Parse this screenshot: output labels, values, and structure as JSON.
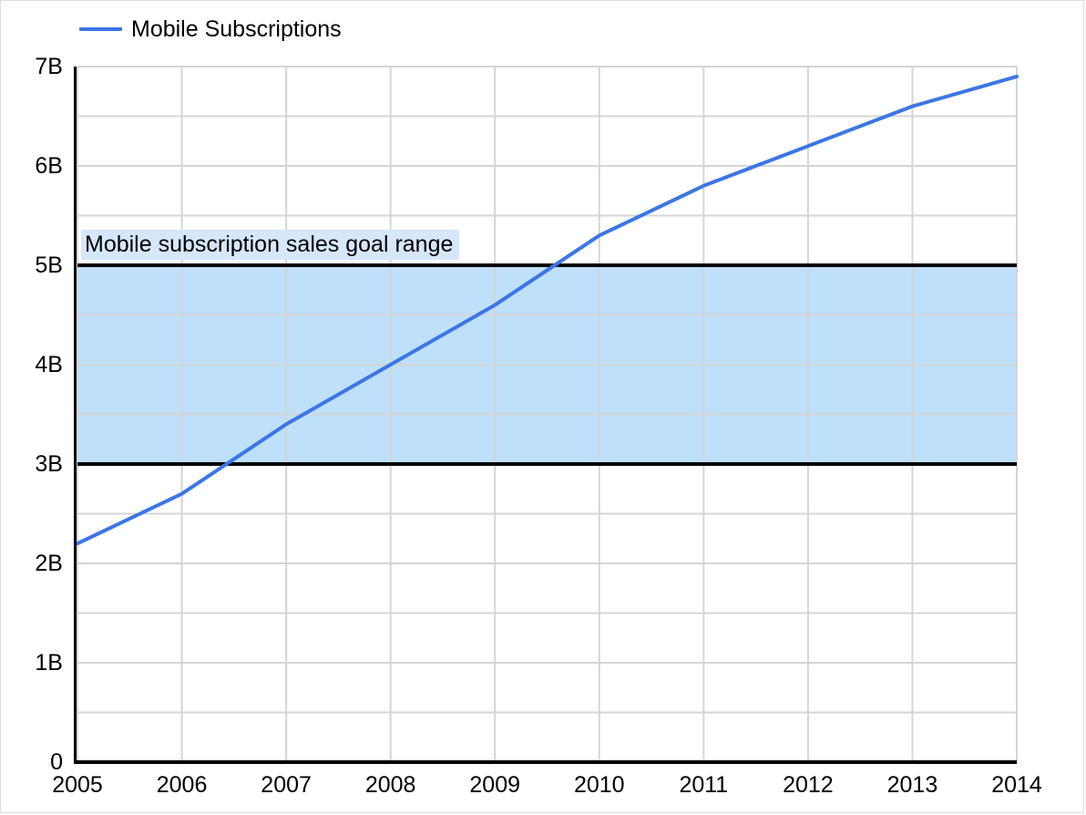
{
  "legend": {
    "label": "Mobile Subscriptions"
  },
  "colors": {
    "series_line": "#3b76e7",
    "goal_band_fill": "#bee0fb",
    "goal_label_bg": "#d6e7fc",
    "gridline": "#d5d5d5",
    "axis": "#000000",
    "text": "#000000",
    "background": "#ffffff"
  },
  "chart_data": {
    "type": "line",
    "title": "",
    "xlabel": "",
    "ylabel": "",
    "x": [
      2005,
      2006,
      2007,
      2008,
      2009,
      2010,
      2011,
      2012,
      2013,
      2014
    ],
    "x_tick_labels": [
      "2005",
      "2006",
      "2007",
      "2008",
      "2009",
      "2010",
      "2011",
      "2012",
      "2013",
      "2014"
    ],
    "series": [
      {
        "name": "Mobile Subscriptions",
        "color": "#3b76e7",
        "values": [
          2.2,
          2.7,
          3.4,
          4.0,
          4.6,
          5.3,
          5.8,
          6.2,
          6.6,
          6.9
        ]
      }
    ],
    "unit": "billions",
    "ylim": [
      0,
      7
    ],
    "y_ticks": [
      0,
      1,
      2,
      3,
      4,
      5,
      6,
      7
    ],
    "y_tick_labels": [
      "0",
      "1B",
      "2B",
      "3B",
      "4B",
      "5B",
      "6B",
      "7B"
    ],
    "y_minor_step": 0.5,
    "grid": true,
    "legend_position": "top-left",
    "annotation_band": {
      "label": "Mobile subscription sales goal range",
      "from": 3,
      "to": 5
    }
  }
}
